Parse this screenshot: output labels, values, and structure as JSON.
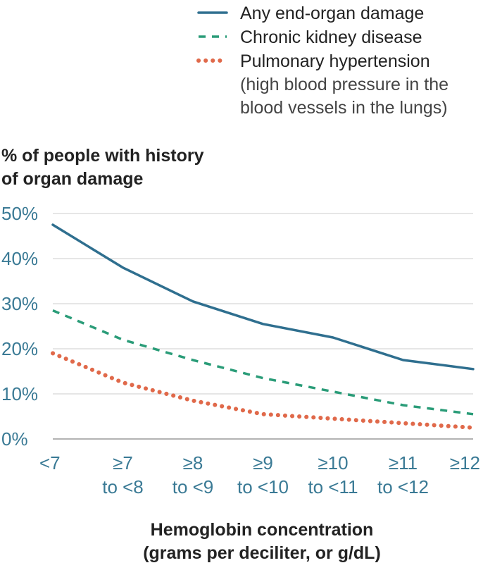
{
  "chart_data": {
    "type": "line",
    "title": "",
    "categories": [
      [
        "<7"
      ],
      [
        "≥7",
        "to <8"
      ],
      [
        "≥8",
        "to <9"
      ],
      [
        "≥9",
        "to <10"
      ],
      [
        "≥10",
        "to <11"
      ],
      [
        "≥11",
        "to <12"
      ],
      [
        "≥12"
      ]
    ],
    "series": [
      {
        "name": "Any end-organ damage",
        "color": "#2f6f8f",
        "style": "solid",
        "values": [
          47.5,
          38,
          30.5,
          25.5,
          22.5,
          17.5,
          15.5
        ]
      },
      {
        "name": "Chronic kidney disease",
        "color": "#2a9c78",
        "style": "dashed",
        "values": [
          28.5,
          22,
          17.5,
          13.5,
          10.5,
          7.5,
          5.5
        ]
      },
      {
        "name": "Pulmonary hypertension",
        "description": [
          "(high blood pressure in the",
          "blood vessels in the lungs)"
        ],
        "color": "#e0694a",
        "style": "dotted",
        "values": [
          19,
          12.5,
          8.5,
          5.5,
          4.5,
          3.5,
          2.5
        ]
      }
    ],
    "ylabel": [
      "% of people with history",
      "of organ damage"
    ],
    "xlabel": [
      "Hemoglobin concentration",
      "(grams per deciliter, or g/dL)"
    ],
    "ylim": [
      0,
      50
    ],
    "yticks": [
      0,
      10,
      20,
      30,
      40,
      50
    ],
    "ytick_labels": [
      "0%",
      "10%",
      "20%",
      "30%",
      "40%",
      "50%"
    ],
    "grid": true,
    "legend_position": "top-right"
  }
}
